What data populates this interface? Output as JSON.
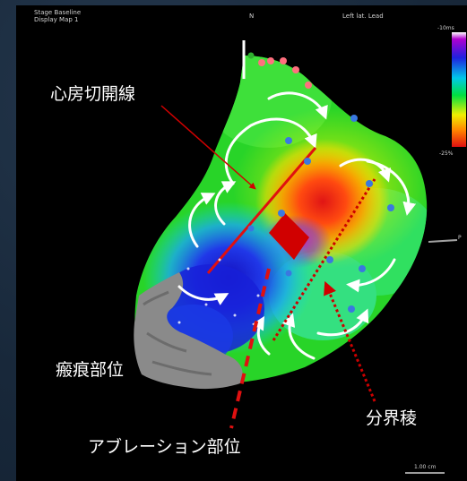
{
  "header": {
    "line1": "Stage Baseline",
    "line2": "Display Map 1",
    "marker": "N",
    "view": "Left lat. Lead"
  },
  "labels": {
    "incision": "心房切開線",
    "scar": "瘢痕部位",
    "boundary": "分界稜",
    "ablation": "アブレーション部位"
  },
  "colorbar": {
    "top_label": "-10ms",
    "bottom_label": "-25%"
  },
  "scale": {
    "label": "1.00 cm"
  },
  "side_label": "P",
  "colors": {
    "arrow": "#e00000",
    "boundary": "#cc0000",
    "dot_blue": "#3a78e0",
    "dot_pink": "#ff6f7e",
    "scar": "#8a8a8a"
  }
}
